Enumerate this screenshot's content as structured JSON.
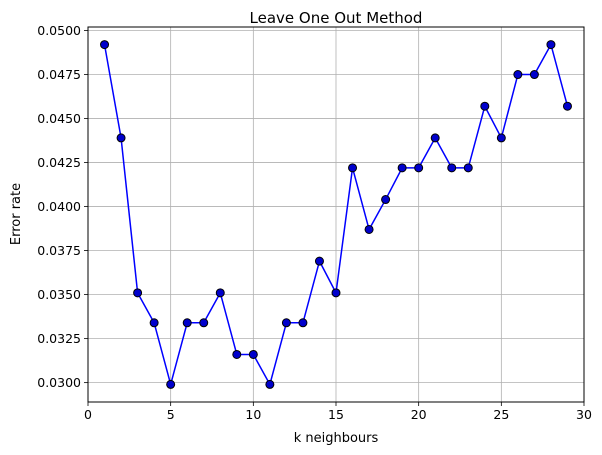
{
  "chart_data": {
    "type": "line",
    "title": "Leave One Out Method",
    "xlabel": "k neighbours",
    "ylabel": "Error rate",
    "xlim": [
      0,
      30
    ],
    "ylim": [
      0.0289,
      0.0502
    ],
    "xticks": [
      0,
      5,
      10,
      15,
      20,
      25,
      30
    ],
    "xtick_labels": [
      "0",
      "5",
      "10",
      "15",
      "20",
      "25",
      "30"
    ],
    "yticks": [
      0.03,
      0.0325,
      0.035,
      0.0375,
      0.04,
      0.0425,
      0.045,
      0.0475,
      0.05
    ],
    "ytick_labels": [
      "0.0300",
      "0.0325",
      "0.0350",
      "0.0375",
      "0.0400",
      "0.0425",
      "0.0450",
      "0.0475",
      "0.0500"
    ],
    "grid": true,
    "series": [
      {
        "x": [
          1,
          2,
          3,
          4,
          5,
          6,
          7,
          8,
          9,
          10,
          11,
          12,
          13,
          14,
          15,
          16,
          17,
          18,
          19,
          20,
          21,
          22,
          23,
          24,
          25,
          26,
          27,
          28,
          29
        ],
        "values": [
          0.0492,
          0.0439,
          0.0351,
          0.0334,
          0.0299,
          0.0334,
          0.0334,
          0.0351,
          0.0316,
          0.0316,
          0.0299,
          0.0334,
          0.0334,
          0.0369,
          0.0351,
          0.0422,
          0.0387,
          0.0404,
          0.0422,
          0.0422,
          0.0439,
          0.0422,
          0.0422,
          0.0457,
          0.0439,
          0.0475,
          0.0475,
          0.0492,
          0.0457
        ],
        "line_color": "#0000ff",
        "marker": "circle",
        "marker_face": "#0000cc",
        "marker_edge": "#000000"
      }
    ]
  }
}
